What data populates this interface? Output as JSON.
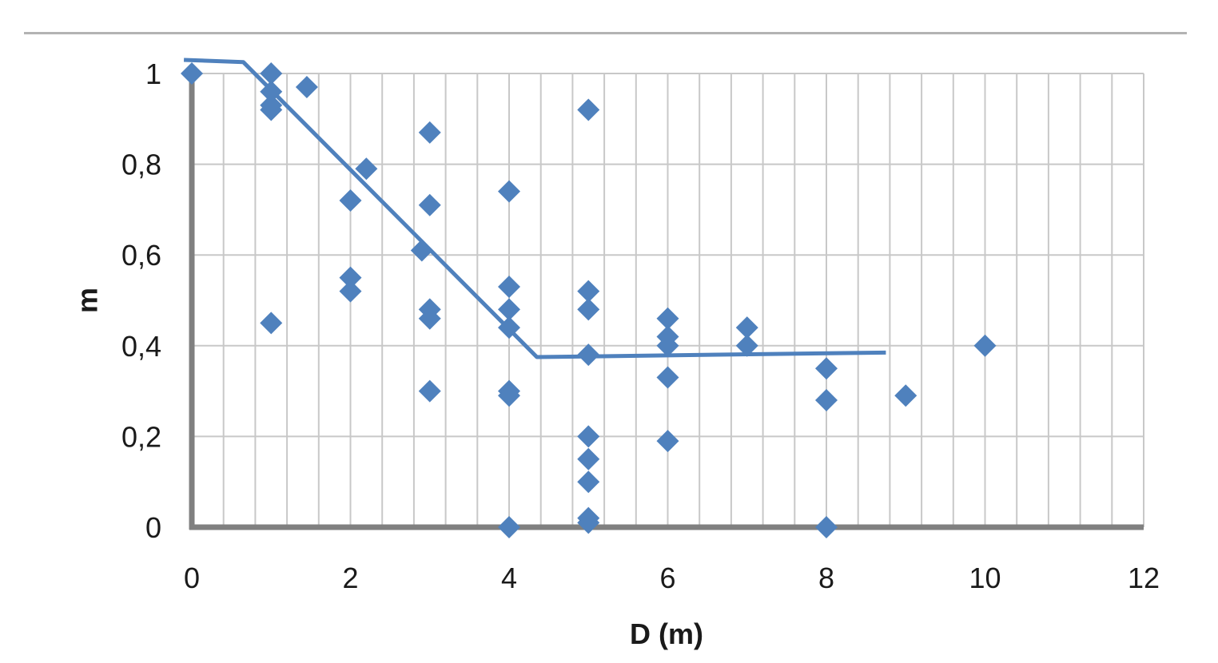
{
  "chart_data": {
    "type": "scatter",
    "title": "",
    "xlabel": "D (m)",
    "ylabel": "m",
    "xlim": [
      0,
      12
    ],
    "ylim": [
      0,
      1
    ],
    "x_ticks": [
      0,
      2,
      4,
      6,
      8,
      10,
      12
    ],
    "x_tick_labels": [
      "0",
      "2",
      "4",
      "6",
      "8",
      "10",
      "12"
    ],
    "y_ticks": [
      0,
      0.2,
      0.4,
      0.6,
      0.8,
      1
    ],
    "y_tick_labels": [
      "0",
      "0,2",
      "0,4",
      "0,6",
      "0,8",
      "1"
    ],
    "grid": true,
    "minor_x_grid_step": 0.4,
    "legend": "none",
    "colors": {
      "marker": "#4f81bd",
      "line": "#4f81bd",
      "axis": "#808080",
      "grid": "#c8c8c8"
    },
    "points": [
      {
        "x": 0,
        "y": 1.0
      },
      {
        "x": 1,
        "y": 1.0
      },
      {
        "x": 1,
        "y": 0.96
      },
      {
        "x": 1,
        "y": 0.93
      },
      {
        "x": 1,
        "y": 0.92
      },
      {
        "x": 1,
        "y": 0.45
      },
      {
        "x": 1.45,
        "y": 0.97
      },
      {
        "x": 2,
        "y": 0.72
      },
      {
        "x": 2,
        "y": 0.55
      },
      {
        "x": 2,
        "y": 0.52
      },
      {
        "x": 2.2,
        "y": 0.79
      },
      {
        "x": 2.9,
        "y": 0.61
      },
      {
        "x": 3,
        "y": 0.87
      },
      {
        "x": 3,
        "y": 0.71
      },
      {
        "x": 3,
        "y": 0.48
      },
      {
        "x": 3,
        "y": 0.46
      },
      {
        "x": 3,
        "y": 0.3
      },
      {
        "x": 4,
        "y": 0.74
      },
      {
        "x": 4,
        "y": 0.53
      },
      {
        "x": 4,
        "y": 0.48
      },
      {
        "x": 4,
        "y": 0.44
      },
      {
        "x": 4,
        "y": 0.3
      },
      {
        "x": 4,
        "y": 0.29
      },
      {
        "x": 4,
        "y": 0.0
      },
      {
        "x": 5,
        "y": 0.92
      },
      {
        "x": 5,
        "y": 0.52
      },
      {
        "x": 5,
        "y": 0.48
      },
      {
        "x": 5,
        "y": 0.38
      },
      {
        "x": 5,
        "y": 0.2
      },
      {
        "x": 5,
        "y": 0.15
      },
      {
        "x": 5,
        "y": 0.1
      },
      {
        "x": 5,
        "y": 0.02
      },
      {
        "x": 5,
        "y": 0.01
      },
      {
        "x": 6,
        "y": 0.46
      },
      {
        "x": 6,
        "y": 0.42
      },
      {
        "x": 6,
        "y": 0.4
      },
      {
        "x": 6,
        "y": 0.33
      },
      {
        "x": 6,
        "y": 0.19
      },
      {
        "x": 7,
        "y": 0.44
      },
      {
        "x": 7,
        "y": 0.4
      },
      {
        "x": 8,
        "y": 0.35
      },
      {
        "x": 8,
        "y": 0.28
      },
      {
        "x": 8,
        "y": 0.0
      },
      {
        "x": 9,
        "y": 0.29
      },
      {
        "x": 10,
        "y": 0.4
      }
    ],
    "fit_line": [
      {
        "x": -0.1,
        "y": 1.03
      },
      {
        "x": 0.65,
        "y": 1.025
      },
      {
        "x": 4.35,
        "y": 0.375
      },
      {
        "x": 8.75,
        "y": 0.385
      }
    ]
  }
}
